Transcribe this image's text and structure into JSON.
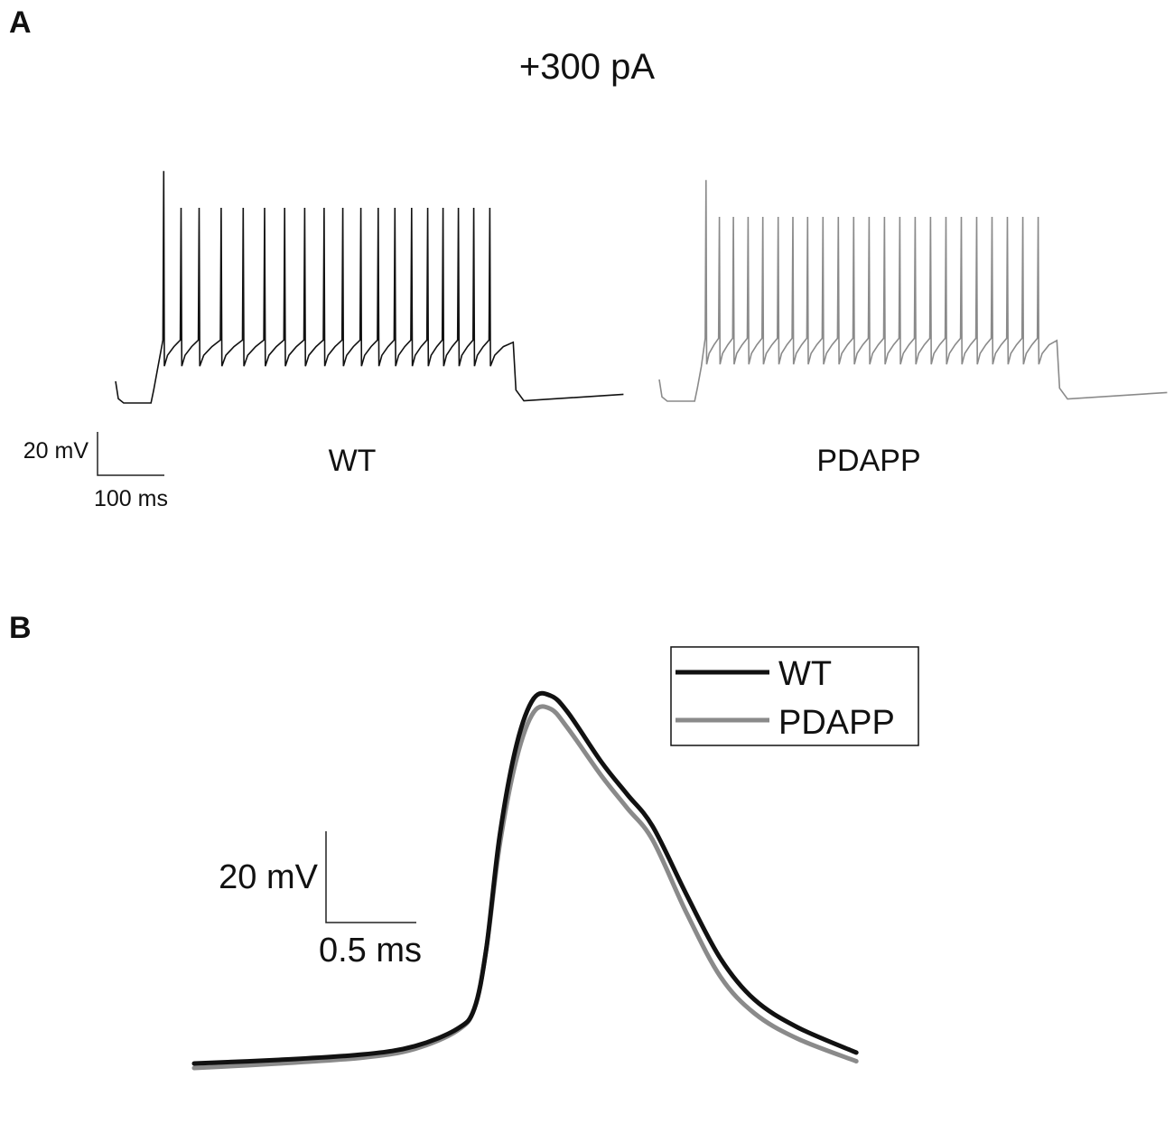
{
  "panel_a": {
    "letter": "A"
  },
  "panel_b": {
    "letter": "B"
  },
  "chart_data": [
    {
      "type": "line",
      "panel": "A",
      "title": "+300 pA",
      "scale_bar": {
        "y_label": "20 mV",
        "x_label": "100 ms",
        "y_value_mV": 20,
        "x_value_ms": 100
      },
      "traces": [
        {
          "name": "WT",
          "color": "#111111",
          "baseline_mV": -72,
          "stimulus_start_ms": 55,
          "stimulus_end_ms": 595,
          "spike_times_ms": [
            72,
            98,
            125,
            158,
            191,
            223,
            253,
            283,
            312,
            340,
            367,
            393,
            418,
            443,
            467,
            490,
            513,
            536,
            560
          ],
          "first_spike_peak_mV": 35,
          "spike_peak_mV": 18,
          "ahp_trough_mV": -55
        },
        {
          "name": "PDAPP",
          "color": "#8a8a8a",
          "baseline_mV": -72,
          "stimulus_start_ms": 55,
          "stimulus_end_ms": 595,
          "spike_times_ms": [
            70,
            90,
            111,
            133,
            155,
            178,
            200,
            222,
            245,
            268,
            291,
            314,
            337,
            360,
            383,
            406,
            429,
            452,
            475,
            498,
            521,
            544,
            567
          ],
          "first_spike_peak_mV": 30,
          "spike_peak_mV": 13,
          "ahp_trough_mV": -55
        }
      ]
    },
    {
      "type": "line",
      "panel": "B",
      "scale_bar": {
        "y_label": "20 mV",
        "x_label": "0.5 ms",
        "y_value_mV": 20,
        "x_value_ms": 0.5
      },
      "legend": {
        "position": "top-right",
        "entries": [
          "WT",
          "PDAPP"
        ]
      },
      "series": [
        {
          "name": "WT",
          "color": "#111111",
          "points_ms_mV": [
            [
              0,
              -70
            ],
            [
              0.5,
              -69.2
            ],
            [
              1,
              -68
            ],
            [
              1.3,
              -66.2
            ],
            [
              1.55,
              -62.4
            ],
            [
              1.65,
              -58
            ],
            [
              1.72,
              -45
            ],
            [
              1.8,
              -20
            ],
            [
              1.9,
              0
            ],
            [
              2,
              10
            ],
            [
              2.1,
              10.6
            ],
            [
              2.2,
              7
            ],
            [
              2.4,
              -4
            ],
            [
              2.55,
              -11
            ],
            [
              2.7,
              -18
            ],
            [
              2.9,
              -33
            ],
            [
              3.1,
              -47
            ],
            [
              3.3,
              -56
            ],
            [
              3.55,
              -62
            ],
            [
              3.9,
              -67.6
            ]
          ]
        },
        {
          "name": "PDAPP",
          "color": "#8a8a8a",
          "points_ms_mV": [
            [
              0,
              -71
            ],
            [
              0.5,
              -70
            ],
            [
              1,
              -68.7
            ],
            [
              1.3,
              -66.8
            ],
            [
              1.55,
              -62.8
            ],
            [
              1.65,
              -58
            ],
            [
              1.72,
              -45
            ],
            [
              1.8,
              -22
            ],
            [
              1.9,
              -3
            ],
            [
              2,
              7
            ],
            [
              2.1,
              7.7
            ],
            [
              2.2,
              3.5
            ],
            [
              2.4,
              -7
            ],
            [
              2.55,
              -14
            ],
            [
              2.7,
              -21
            ],
            [
              2.9,
              -37
            ],
            [
              3.1,
              -51
            ],
            [
              3.3,
              -59
            ],
            [
              3.55,
              -64.5
            ],
            [
              3.9,
              -69.5
            ]
          ]
        }
      ]
    }
  ]
}
